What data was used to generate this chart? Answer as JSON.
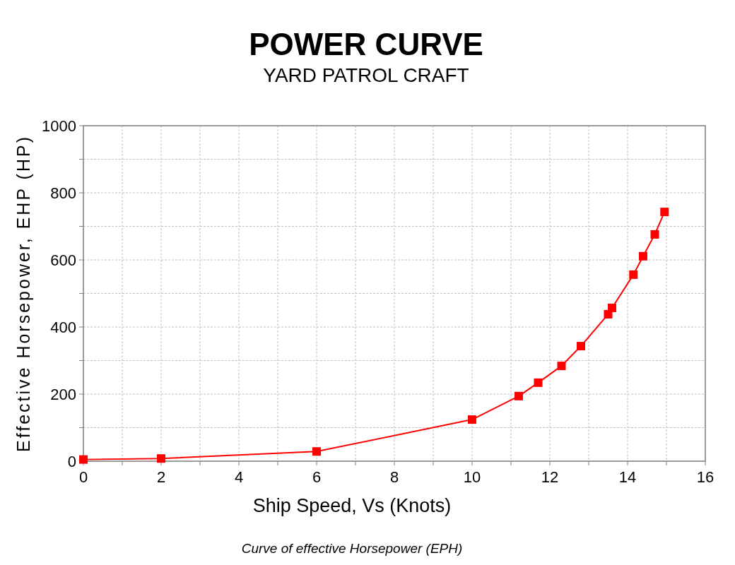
{
  "chart_data": {
    "type": "line",
    "title": "POWER CURVE",
    "subtitle": "YARD PATROL CRAFT",
    "xlabel": "Ship Speed, Vs (Knots)",
    "ylabel": "Effective Horsepower, EHP (HP)",
    "x": [
      0,
      2,
      6,
      10,
      11.2,
      11.7,
      12.3,
      12.8,
      13.5,
      13.6,
      14.15,
      14.4,
      14.7,
      14.95
    ],
    "series": [
      {
        "color": "#ff0000",
        "values": [
          5,
          8,
          29,
          124,
          194,
          234,
          284,
          343,
          438,
          457,
          556,
          611,
          676,
          743
        ]
      }
    ],
    "xlim": [
      0,
      16
    ],
    "ylim": [
      0,
      1000
    ],
    "xticks": [
      0,
      {
        "value": 1,
        "label": null
      },
      2,
      {
        "value": 3,
        "label": null
      },
      4,
      {
        "value": 5,
        "label": null
      },
      6,
      {
        "value": 7,
        "label": null
      },
      8,
      {
        "value": 9,
        "label": null
      },
      10,
      {
        "value": 11,
        "label": null
      },
      12,
      {
        "value": 13,
        "label": null
      },
      14,
      {
        "value": 15,
        "label": null
      },
      16
    ],
    "yticks": [
      0,
      {
        "value": 100,
        "label": null
      },
      200,
      {
        "value": 300,
        "label": null
      },
      400,
      {
        "value": 500,
        "label": null
      },
      600,
      {
        "value": 700,
        "label": null
      },
      800,
      {
        "value": 900,
        "label": null
      },
      1000
    ],
    "grid": true,
    "marker": "square",
    "line_style": "solid",
    "annotations": [
      "Curve of effective Horsepower (EPH)"
    ]
  }
}
